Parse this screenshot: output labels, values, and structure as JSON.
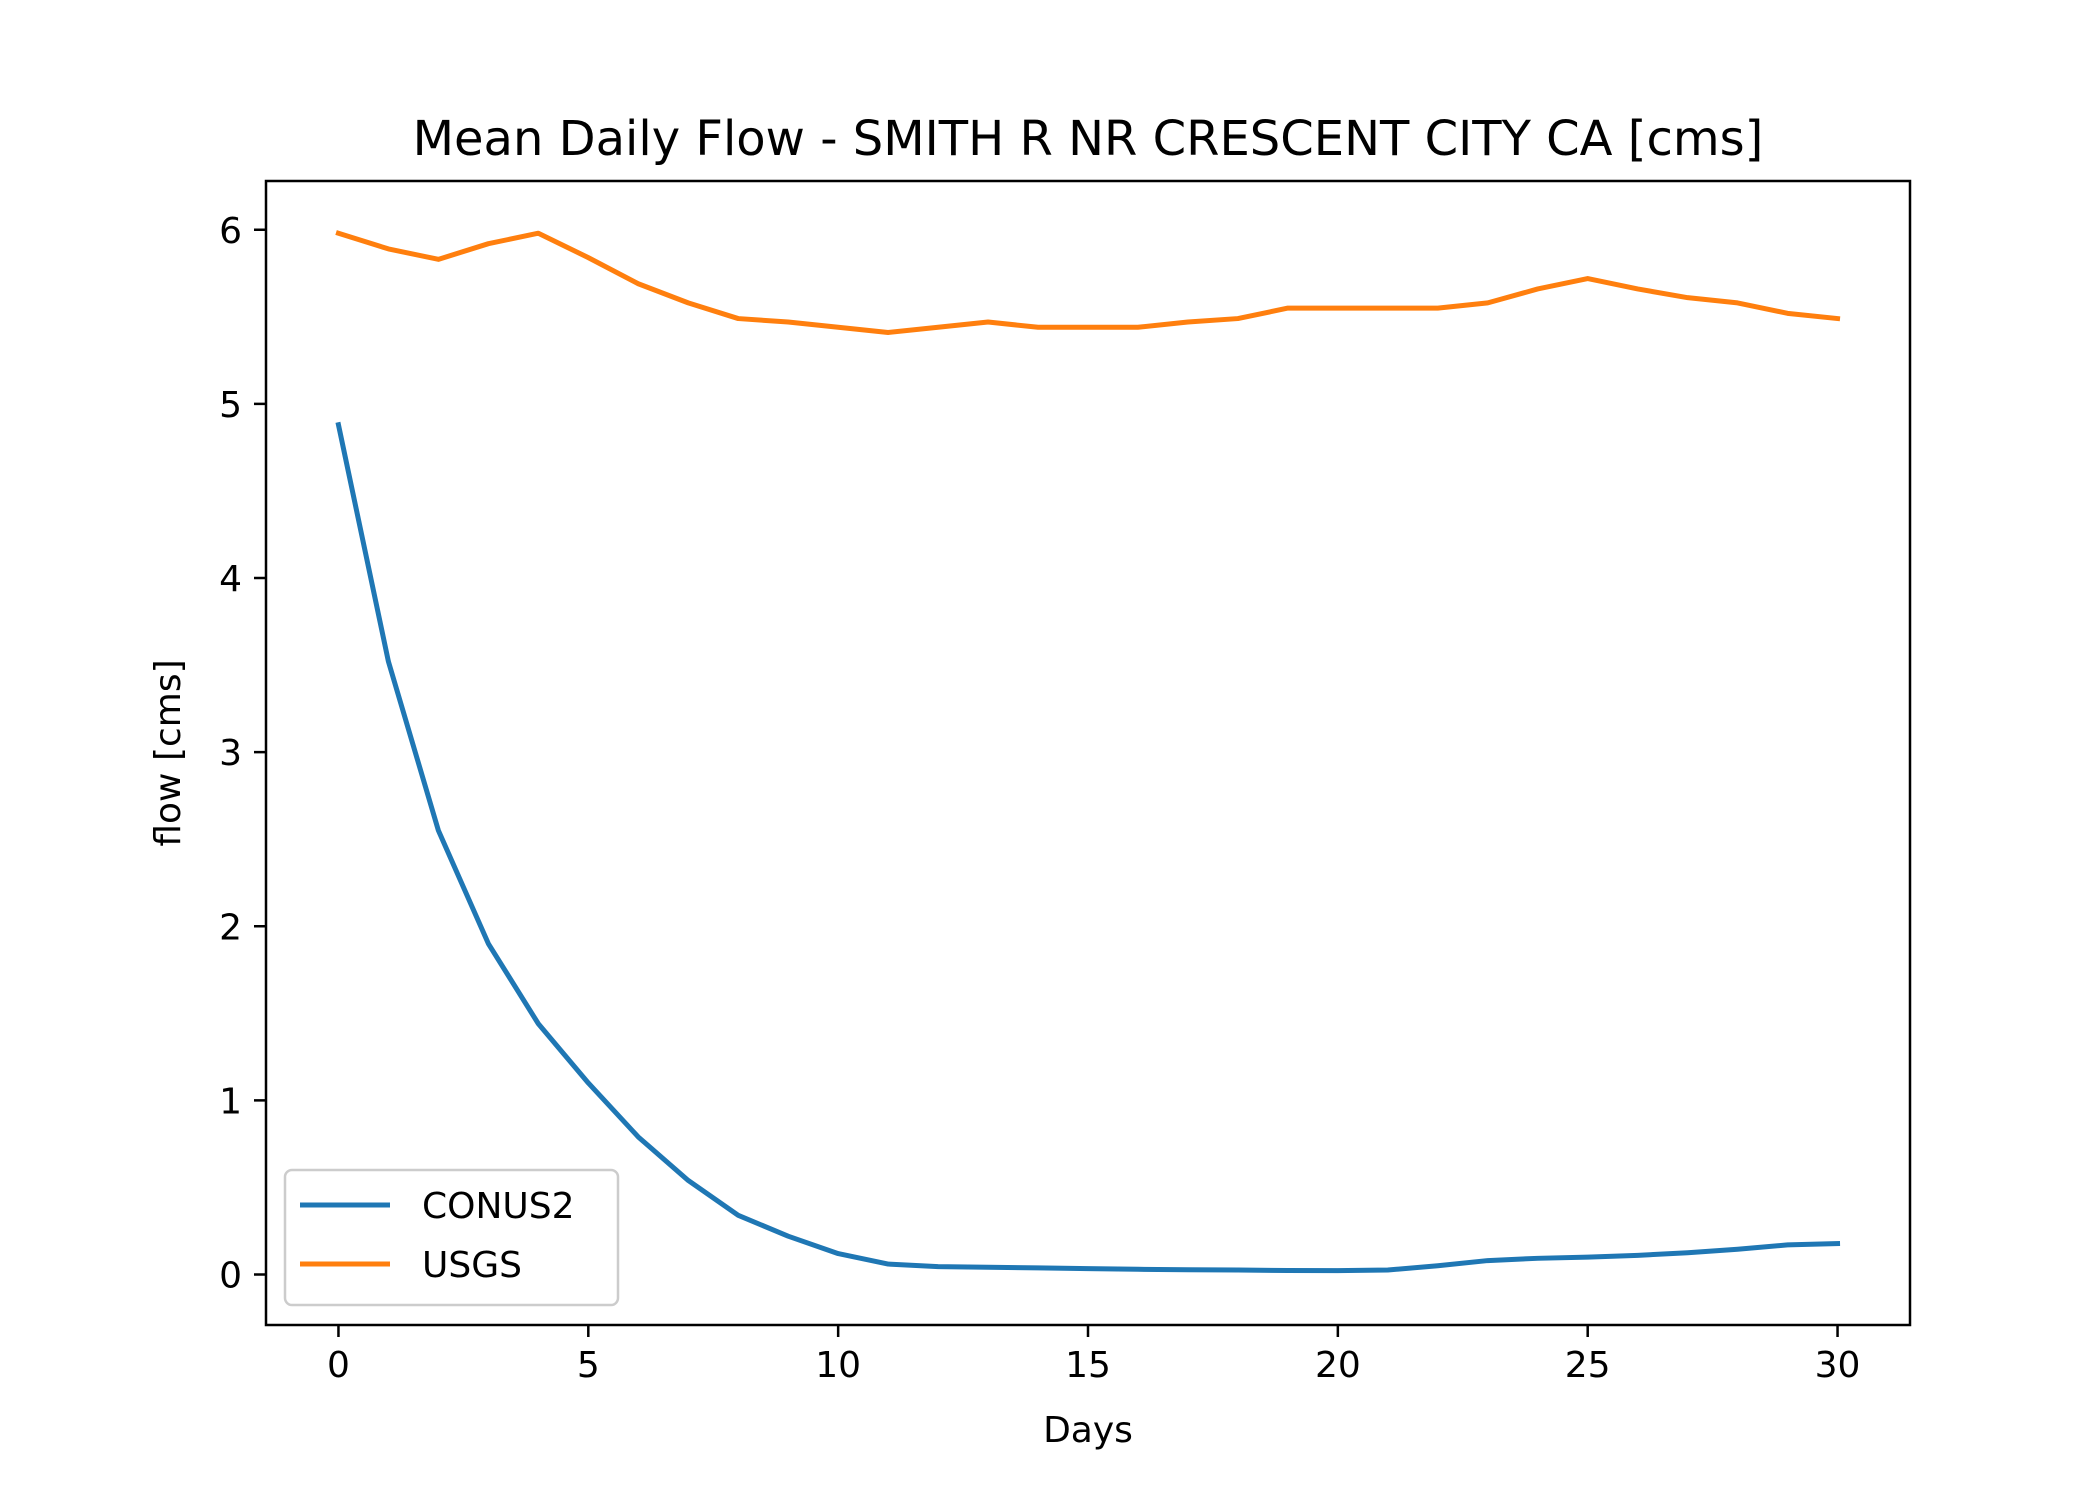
{
  "chart_data": {
    "type": "line",
    "title": "Mean Daily Flow - SMITH R NR CRESCENT CITY CA [cms]",
    "xlabel": "Days",
    "ylabel": "flow [cms]",
    "xlim": [
      -1.45,
      31.45
    ],
    "ylim": [
      -0.29,
      6.28
    ],
    "xticks": [
      0,
      5,
      10,
      15,
      20,
      25,
      30
    ],
    "yticks": [
      0,
      1,
      2,
      3,
      4,
      5,
      6
    ],
    "grid": false,
    "legend_position": "lower-left",
    "x": [
      0,
      1,
      2,
      3,
      4,
      5,
      6,
      7,
      8,
      9,
      10,
      11,
      12,
      13,
      14,
      15,
      16,
      17,
      18,
      19,
      20,
      21,
      22,
      23,
      24,
      25,
      26,
      27,
      28,
      29,
      30
    ],
    "series": [
      {
        "name": "CONUS2",
        "color": "#1f77b4",
        "values": [
          4.88,
          3.52,
          2.55,
          1.9,
          1.44,
          1.1,
          0.79,
          0.54,
          0.34,
          0.22,
          0.12,
          0.06,
          0.045,
          0.042,
          0.038,
          0.034,
          0.03,
          0.027,
          0.026,
          0.023,
          0.022,
          0.026,
          0.05,
          0.08,
          0.093,
          0.1,
          0.11,
          0.125,
          0.145,
          0.17,
          0.178
        ]
      },
      {
        "name": "USGS",
        "color": "#ff7f0e",
        "values": [
          5.98,
          5.89,
          5.83,
          5.92,
          5.98,
          5.84,
          5.69,
          5.58,
          5.49,
          5.47,
          5.44,
          5.41,
          5.44,
          5.47,
          5.44,
          5.44,
          5.44,
          5.47,
          5.49,
          5.55,
          5.55,
          5.55,
          5.55,
          5.58,
          5.66,
          5.72,
          5.66,
          5.61,
          5.58,
          5.52,
          5.49
        ]
      }
    ]
  }
}
